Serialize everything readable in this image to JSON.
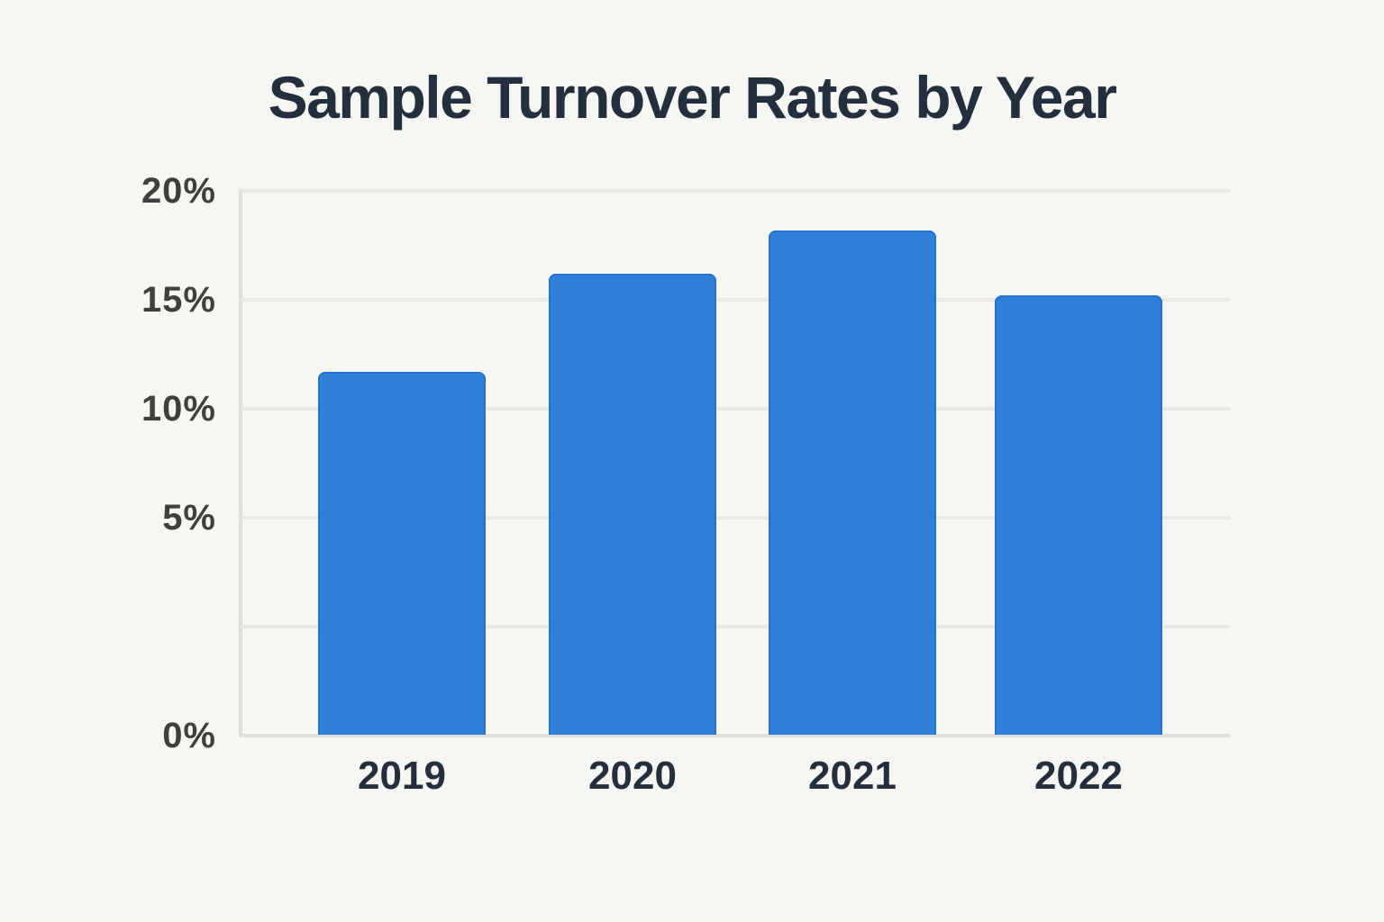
{
  "chart": {
    "title": "Sample Turnover Rates by Year"
  },
  "chart_data": {
    "type": "bar",
    "title": "Sample Turnover Rates by Year",
    "categories": [
      "2019",
      "2020",
      "2021",
      "2022"
    ],
    "values": [
      11.7,
      16.2,
      18.2,
      15.2
    ],
    "unit": "%",
    "xlabel": "",
    "ylabel": "",
    "ylim": [
      0,
      20
    ],
    "y_tick_labels": [
      "20%",
      "15%",
      "10%",
      "5%",
      "",
      "0%"
    ],
    "grid": "horizontal-only",
    "legend": "none"
  },
  "colors": {
    "background": "#f8f6f2",
    "bar": "#2f80d8",
    "bar_edge": "#2273cd",
    "grid": "#eae8e3",
    "axis": "#e0ded8",
    "tick_text": "#403f3d",
    "category_text": "#232f3d",
    "title_text": "#232f3d"
  }
}
